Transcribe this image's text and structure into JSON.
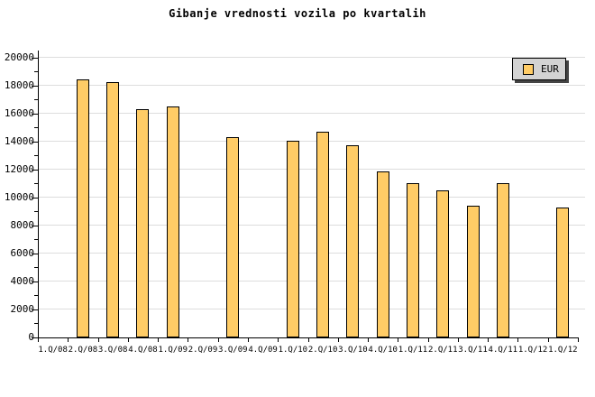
{
  "title": "Gibanje vrednosti vozila po kvartalih",
  "legend": {
    "label": "EUR"
  },
  "colors": {
    "bar_fill": "#FFCC66",
    "bar_border": "#000000",
    "grid": "#DDDDDD",
    "axis": "#000000",
    "legend_bg": "#D3D3D3",
    "legend_border": "#000000",
    "legend_shadow": "#444444",
    "background": "#FFFFFF"
  },
  "chart_data": {
    "type": "bar",
    "title": "Gibanje vrednosti vozila po kvartalih",
    "categories": [
      "1.Q/08",
      "2.Q/08",
      "3.Q/08",
      "4.Q/08",
      "1.Q/09",
      "2.Q/09",
      "3.Q/09",
      "4.Q/09",
      "1.Q/10",
      "2.Q/10",
      "3.Q/10",
      "4.Q/10",
      "1.Q/11",
      "2.Q/11",
      "3.Q/11",
      "4.Q/11",
      "1.Q/12",
      "1.Q/12"
    ],
    "series": [
      {
        "name": "EUR",
        "values": [
          null,
          18400,
          18250,
          16300,
          16500,
          null,
          14300,
          null,
          14050,
          14700,
          13750,
          11850,
          11000,
          10500,
          9400,
          11000,
          null,
          9250
        ]
      }
    ],
    "xlabel": "",
    "ylabel": "",
    "ylim": [
      0,
      20000
    ],
    "ytick_major": 2000,
    "ytick_minor": 1000,
    "ytick_labels": [
      "0",
      "2000",
      "4000",
      "6000",
      "8000",
      "10000",
      "12000",
      "14000",
      "16000",
      "18000",
      "20000"
    ],
    "grid": true,
    "legend_position": "top-right",
    "legend_entries": [
      "EUR"
    ]
  }
}
